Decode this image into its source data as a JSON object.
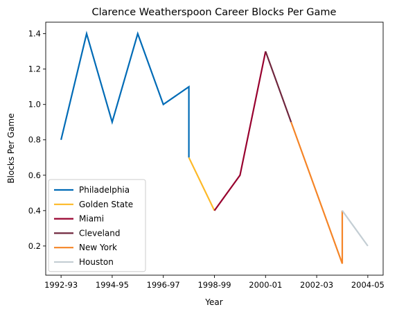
{
  "chart_data": {
    "type": "line",
    "title": "Clarence Weatherspoon Career Blocks Per Game",
    "xlabel": "Year",
    "ylabel": "Blocks Per Game",
    "x_tick_labels": [
      "1992-93",
      "1994-95",
      "1996-97",
      "1998-99",
      "2000-01",
      "2002-03",
      "2004-05"
    ],
    "x_tick_positions": [
      0,
      2,
      4,
      6,
      8,
      10,
      12
    ],
    "y_ticks": [
      0.2,
      0.4,
      0.6,
      0.8,
      1.0,
      1.2,
      1.4
    ],
    "y_tick_labels": [
      "0.2",
      "0.4",
      "0.6",
      "0.8",
      "1.0",
      "1.2",
      "1.4"
    ],
    "xlim": [
      -0.6,
      12.6
    ],
    "ylim": [
      0.035,
      1.465
    ],
    "legend_position": "lower-left",
    "series": [
      {
        "name": "Philadelphia",
        "color": "#006bb6",
        "x": [
          0,
          1,
          2,
          3,
          4,
          5,
          5
        ],
        "y": [
          0.8,
          1.4,
          0.9,
          1.4,
          1.0,
          1.1,
          0.7
        ]
      },
      {
        "name": "Golden State",
        "color": "#fdb927",
        "x": [
          5,
          6
        ],
        "y": [
          0.7,
          0.4
        ]
      },
      {
        "name": "Miami",
        "color": "#98002e",
        "x": [
          6,
          7,
          8
        ],
        "y": [
          0.4,
          0.6,
          1.3
        ]
      },
      {
        "name": "Cleveland",
        "color": "#6f263d",
        "x": [
          8,
          9
        ],
        "y": [
          1.3,
          0.9
        ]
      },
      {
        "name": "New York",
        "color": "#f58426",
        "x": [
          9,
          11,
          11
        ],
        "y": [
          0.9,
          0.1,
          0.4
        ]
      },
      {
        "name": "Houston",
        "color": "#c4ced4",
        "x": [
          11,
          12
        ],
        "y": [
          0.4,
          0.2
        ]
      }
    ]
  }
}
